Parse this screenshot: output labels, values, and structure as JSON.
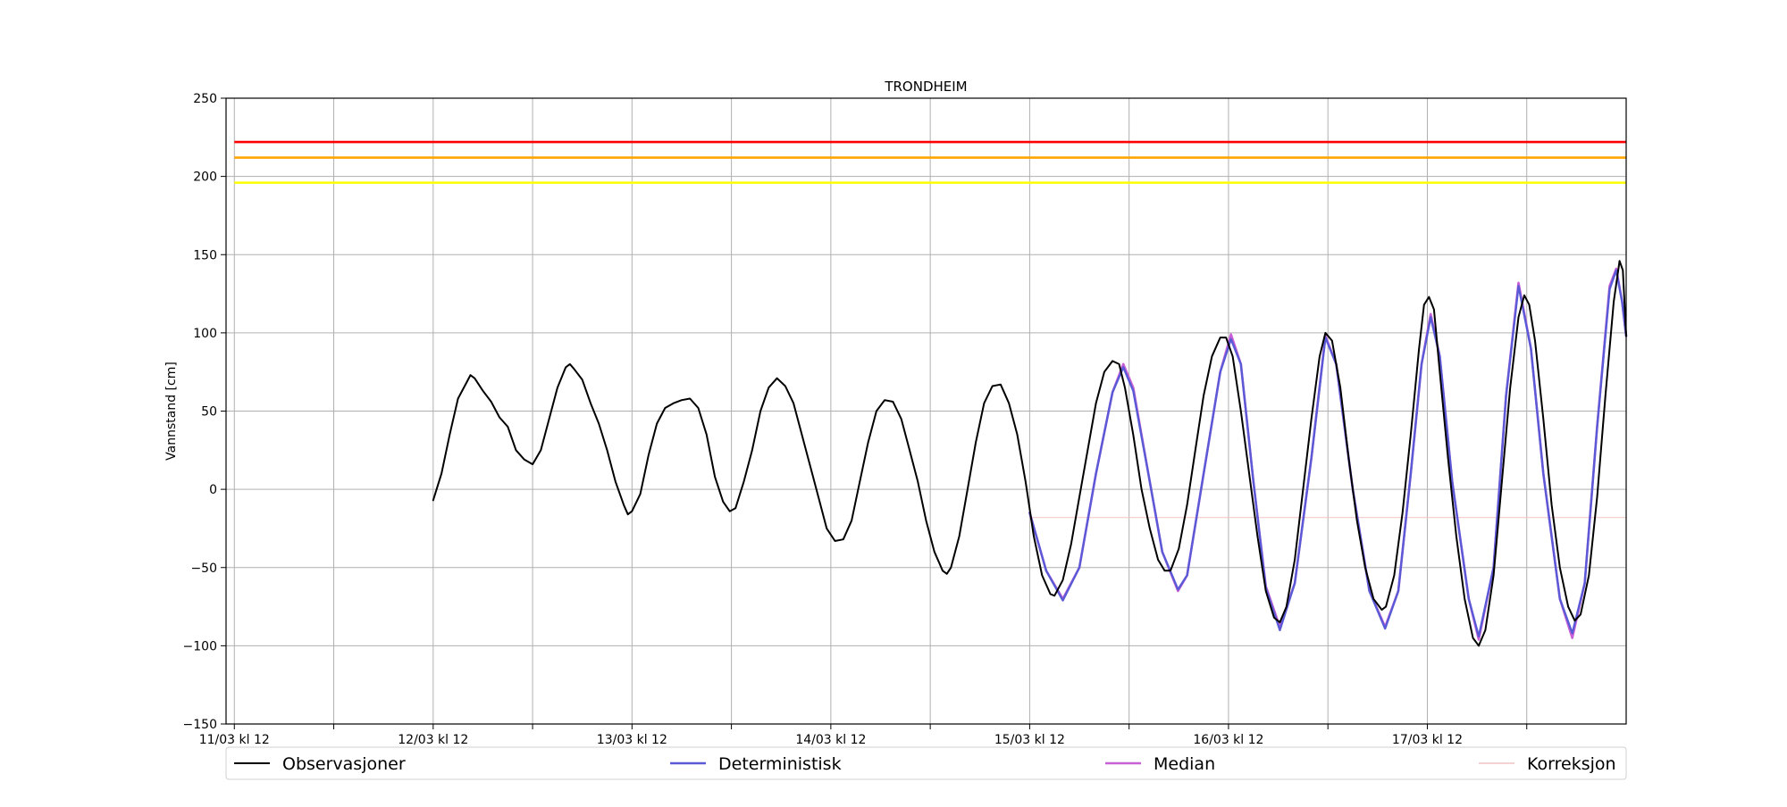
{
  "chart_data": {
    "type": "line",
    "title": "TRONDHEIM",
    "ylabel": "Vannstand [cm]",
    "xlabel": "",
    "ylim": [
      -150,
      250
    ],
    "yticks": [
      -150,
      -100,
      -50,
      0,
      50,
      100,
      150,
      200,
      250
    ],
    "x_unit": "hours since 11/03 kl 12",
    "xlim": [
      -1,
      168
    ],
    "xticks": [
      {
        "x": 0,
        "label": "11/03 kl 12"
      },
      {
        "x": 12,
        "label": ""
      },
      {
        "x": 24,
        "label": "12/03 kl 12"
      },
      {
        "x": 36,
        "label": ""
      },
      {
        "x": 48,
        "label": "13/03 kl 12"
      },
      {
        "x": 60,
        "label": ""
      },
      {
        "x": 72,
        "label": "14/03 kl 12"
      },
      {
        "x": 84,
        "label": ""
      },
      {
        "x": 96,
        "label": "15/03 kl 12"
      },
      {
        "x": 108,
        "label": ""
      },
      {
        "x": 120,
        "label": "16/03 kl 12"
      },
      {
        "x": 132,
        "label": ""
      },
      {
        "x": 144,
        "label": "17/03 kl 12"
      },
      {
        "x": 156,
        "label": ""
      }
    ],
    "grid": true,
    "legend_position": "bottom",
    "thresholds": [
      {
        "value": 222,
        "color": "#ff0000"
      },
      {
        "value": 212,
        "color": "#ffa500"
      },
      {
        "value": 196,
        "color": "#ffff00"
      }
    ],
    "series": [
      {
        "name": "Korreksjon",
        "color": "#f4c2c2",
        "width": 1,
        "points": [
          [
            96,
            -18
          ],
          [
            168,
            -18
          ]
        ]
      },
      {
        "name": "Median",
        "color": "#c85fd6",
        "width": 2.6,
        "points": [
          [
            96,
            -15
          ],
          [
            98,
            -52
          ],
          [
            100,
            -70
          ],
          [
            102,
            -50
          ],
          [
            104,
            10
          ],
          [
            106,
            62
          ],
          [
            107.3,
            80
          ],
          [
            108.5,
            65
          ],
          [
            110.5,
            5
          ],
          [
            112,
            -40
          ],
          [
            113.9,
            -65
          ],
          [
            115,
            -55
          ],
          [
            117,
            10
          ],
          [
            119,
            75
          ],
          [
            120.3,
            99
          ],
          [
            121.5,
            80
          ],
          [
            123,
            5
          ],
          [
            124.5,
            -62
          ],
          [
            126.2,
            -88
          ],
          [
            128,
            -60
          ],
          [
            130,
            20
          ],
          [
            131.7,
            98
          ],
          [
            133,
            80
          ],
          [
            135,
            0
          ],
          [
            137,
            -65
          ],
          [
            138.9,
            -88
          ],
          [
            140.5,
            -65
          ],
          [
            142,
            10
          ],
          [
            143.3,
            80
          ],
          [
            144.4,
            112
          ],
          [
            145.5,
            85
          ],
          [
            147,
            5
          ],
          [
            149,
            -70
          ],
          [
            150.2,
            -96
          ],
          [
            152,
            -50
          ],
          [
            153.5,
            60
          ],
          [
            155,
            132
          ],
          [
            156.5,
            90
          ],
          [
            158,
            10
          ],
          [
            160,
            -70
          ],
          [
            161.5,
            -95
          ],
          [
            163,
            -60
          ],
          [
            164.5,
            40
          ],
          [
            166,
            130
          ],
          [
            166.8,
            141
          ],
          [
            167.5,
            120
          ],
          [
            168,
            98
          ]
        ]
      },
      {
        "name": "Deterministisk",
        "color": "#5a5ad6",
        "width": 2.4,
        "points": [
          [
            96,
            -15
          ],
          [
            98,
            -52
          ],
          [
            100,
            -71
          ],
          [
            102,
            -50
          ],
          [
            104,
            10
          ],
          [
            106,
            62
          ],
          [
            107.3,
            78
          ],
          [
            108.5,
            63
          ],
          [
            110.5,
            5
          ],
          [
            112,
            -40
          ],
          [
            113.9,
            -64
          ],
          [
            115,
            -55
          ],
          [
            117,
            10
          ],
          [
            119,
            75
          ],
          [
            120.3,
            96
          ],
          [
            121.5,
            80
          ],
          [
            123,
            5
          ],
          [
            124.5,
            -63
          ],
          [
            126.2,
            -90
          ],
          [
            128,
            -60
          ],
          [
            130,
            20
          ],
          [
            131.7,
            97
          ],
          [
            133,
            80
          ],
          [
            135,
            0
          ],
          [
            137,
            -65
          ],
          [
            138.9,
            -89
          ],
          [
            140.5,
            -65
          ],
          [
            142,
            10
          ],
          [
            143.3,
            80
          ],
          [
            144.4,
            110
          ],
          [
            145.5,
            85
          ],
          [
            147,
            5
          ],
          [
            149,
            -70
          ],
          [
            150.2,
            -94
          ],
          [
            152,
            -50
          ],
          [
            153.5,
            60
          ],
          [
            155,
            130
          ],
          [
            156.5,
            90
          ],
          [
            158,
            10
          ],
          [
            160,
            -70
          ],
          [
            161.5,
            -92
          ],
          [
            163,
            -60
          ],
          [
            164.5,
            40
          ],
          [
            166,
            128
          ],
          [
            166.8,
            140
          ],
          [
            167.5,
            120
          ],
          [
            168,
            98
          ]
        ]
      },
      {
        "name": "Observasjoner",
        "color": "#000000",
        "width": 2,
        "points": [
          [
            24,
            -7
          ],
          [
            25,
            10
          ],
          [
            26,
            35
          ],
          [
            27,
            58
          ],
          [
            28,
            68
          ],
          [
            28.5,
            73
          ],
          [
            29,
            71
          ],
          [
            30,
            63
          ],
          [
            31,
            56
          ],
          [
            32,
            46
          ],
          [
            33,
            40
          ],
          [
            34,
            25
          ],
          [
            35,
            19
          ],
          [
            36,
            16
          ],
          [
            37,
            25
          ],
          [
            38,
            45
          ],
          [
            39,
            65
          ],
          [
            40,
            78
          ],
          [
            40.5,
            80
          ],
          [
            41,
            77
          ],
          [
            42,
            70
          ],
          [
            43,
            55
          ],
          [
            44,
            42
          ],
          [
            45,
            25
          ],
          [
            46,
            5
          ],
          [
            47,
            -10
          ],
          [
            47.5,
            -16
          ],
          [
            48,
            -14
          ],
          [
            49,
            -3
          ],
          [
            50,
            22
          ],
          [
            51,
            42
          ],
          [
            52,
            52
          ],
          [
            53,
            55
          ],
          [
            54,
            57
          ],
          [
            55,
            58
          ],
          [
            56,
            52
          ],
          [
            57,
            35
          ],
          [
            58,
            8
          ],
          [
            59,
            -8
          ],
          [
            59.8,
            -14
          ],
          [
            60.5,
            -12
          ],
          [
            61.5,
            5
          ],
          [
            62.5,
            25
          ],
          [
            63.5,
            50
          ],
          [
            64.5,
            65
          ],
          [
            65.5,
            71
          ],
          [
            66.5,
            66
          ],
          [
            67.5,
            55
          ],
          [
            68.5,
            35
          ],
          [
            69.5,
            15
          ],
          [
            70.5,
            -5
          ],
          [
            71.5,
            -25
          ],
          [
            72.5,
            -33
          ],
          [
            73.5,
            -32
          ],
          [
            74.5,
            -20
          ],
          [
            75.5,
            5
          ],
          [
            76.5,
            30
          ],
          [
            77.5,
            50
          ],
          [
            78.5,
            57
          ],
          [
            79.5,
            56
          ],
          [
            80.5,
            45
          ],
          [
            81.5,
            25
          ],
          [
            82.5,
            5
          ],
          [
            83.5,
            -20
          ],
          [
            84.5,
            -40
          ],
          [
            85.5,
            -52
          ],
          [
            86,
            -54
          ],
          [
            86.5,
            -50
          ],
          [
            87.5,
            -30
          ],
          [
            88.5,
            0
          ],
          [
            89.5,
            30
          ],
          [
            90.5,
            55
          ],
          [
            91.5,
            66
          ],
          [
            92.5,
            67
          ],
          [
            93.5,
            55
          ],
          [
            94.5,
            35
          ],
          [
            95.5,
            5
          ],
          [
            96.5,
            -30
          ],
          [
            97.5,
            -55
          ],
          [
            98.5,
            -67
          ],
          [
            99,
            -68
          ],
          [
            100,
            -58
          ],
          [
            101,
            -35
          ],
          [
            102,
            -5
          ],
          [
            103,
            25
          ],
          [
            104,
            55
          ],
          [
            105,
            75
          ],
          [
            106,
            82
          ],
          [
            106.8,
            80
          ],
          [
            107.5,
            65
          ],
          [
            108.5,
            35
          ],
          [
            109.5,
            0
          ],
          [
            110.5,
            -25
          ],
          [
            111.5,
            -45
          ],
          [
            112.3,
            -52
          ],
          [
            113,
            -52
          ],
          [
            114,
            -38
          ],
          [
            115,
            -10
          ],
          [
            116,
            25
          ],
          [
            117,
            60
          ],
          [
            118,
            85
          ],
          [
            119,
            97
          ],
          [
            119.7,
            97
          ],
          [
            120.5,
            85
          ],
          [
            121.5,
            50
          ],
          [
            122.5,
            10
          ],
          [
            123.5,
            -30
          ],
          [
            124.5,
            -65
          ],
          [
            125.5,
            -82
          ],
          [
            126.2,
            -85
          ],
          [
            127,
            -75
          ],
          [
            128,
            -45
          ],
          [
            129,
            0
          ],
          [
            130,
            45
          ],
          [
            131,
            85
          ],
          [
            131.7,
            100
          ],
          [
            132.5,
            95
          ],
          [
            133.5,
            65
          ],
          [
            134.5,
            20
          ],
          [
            135.5,
            -20
          ],
          [
            136.5,
            -50
          ],
          [
            137.5,
            -70
          ],
          [
            138.5,
            -77
          ],
          [
            139,
            -75
          ],
          [
            140,
            -55
          ],
          [
            141,
            -15
          ],
          [
            142,
            35
          ],
          [
            143,
            90
          ],
          [
            143.6,
            118
          ],
          [
            144.2,
            123
          ],
          [
            144.8,
            115
          ],
          [
            145.5,
            75
          ],
          [
            146.5,
            20
          ],
          [
            147.5,
            -30
          ],
          [
            148.5,
            -70
          ],
          [
            149.5,
            -95
          ],
          [
            150.2,
            -100
          ],
          [
            151,
            -90
          ],
          [
            152,
            -55
          ],
          [
            153,
            5
          ],
          [
            154,
            65
          ],
          [
            155,
            110
          ],
          [
            155.7,
            124
          ],
          [
            156.3,
            118
          ],
          [
            157,
            95
          ],
          [
            158,
            45
          ],
          [
            159,
            -10
          ],
          [
            160,
            -50
          ],
          [
            161,
            -75
          ],
          [
            161.8,
            -84
          ],
          [
            162.5,
            -80
          ],
          [
            163.5,
            -55
          ],
          [
            164.5,
            -5
          ],
          [
            165.5,
            60
          ],
          [
            166.5,
            120
          ],
          [
            167.2,
            146
          ],
          [
            167.6,
            140
          ],
          [
            168,
            98
          ]
        ]
      }
    ],
    "legend": [
      "Observasjoner",
      "Deterministisk",
      "Median",
      "Korreksjon"
    ]
  }
}
